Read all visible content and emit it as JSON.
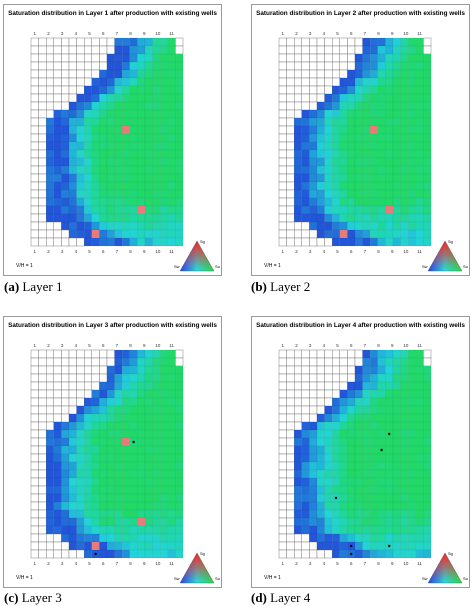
{
  "colors": {
    "blue": "#2255d8",
    "cyan": "#22d4d8",
    "green": "#22d868",
    "red_well": "#e87a7a",
    "grid_line": "#666666"
  },
  "chart_data": [
    {
      "type": "heatmap",
      "title": "Saturation distribution in Layer 1 after production with existing wells",
      "caption_tag": "(a)",
      "caption_text": "Layer 1",
      "x_tick_labels": [
        "1",
        "2",
        "3",
        "4",
        "5",
        "6",
        "7",
        "8",
        "9",
        "10",
        "11"
      ],
      "vh_label": "V/H = 1",
      "ternary_labels": {
        "top": "Sg",
        "left": "Sw",
        "right": "So"
      }
    },
    {
      "type": "heatmap",
      "title": "Saturation distribution in Layer 2 after production with existing wells",
      "caption_tag": "(b)",
      "caption_text": "Layer 2",
      "x_tick_labels": [
        "1",
        "2",
        "3",
        "4",
        "5",
        "6",
        "7",
        "8",
        "9",
        "10",
        "11"
      ],
      "vh_label": "V/H = 1",
      "ternary_labels": {
        "top": "Sg",
        "left": "Sw",
        "right": "So"
      }
    },
    {
      "type": "heatmap",
      "title": "Saturation distribution in Layer 3 after production with existing wells",
      "caption_tag": "(c)",
      "caption_text": "Layer 3",
      "x_tick_labels": [
        "1",
        "2",
        "3",
        "4",
        "5",
        "6",
        "7",
        "8",
        "9",
        "10",
        "11"
      ],
      "vh_label": "V/H = 1",
      "ternary_labels": {
        "top": "Sg",
        "left": "Sw",
        "right": "So"
      }
    },
    {
      "type": "heatmap",
      "title": "Saturation distribution in Layer 4 after production with existing wells",
      "caption_tag": "(d)",
      "caption_text": "Layer 4",
      "x_tick_labels": [
        "1",
        "2",
        "3",
        "4",
        "5",
        "6",
        "7",
        "8",
        "9",
        "10",
        "11"
      ],
      "vh_label": "V/H = 1",
      "ternary_labels": {
        "top": "Sg",
        "left": "Sw",
        "right": "So"
      }
    }
  ]
}
